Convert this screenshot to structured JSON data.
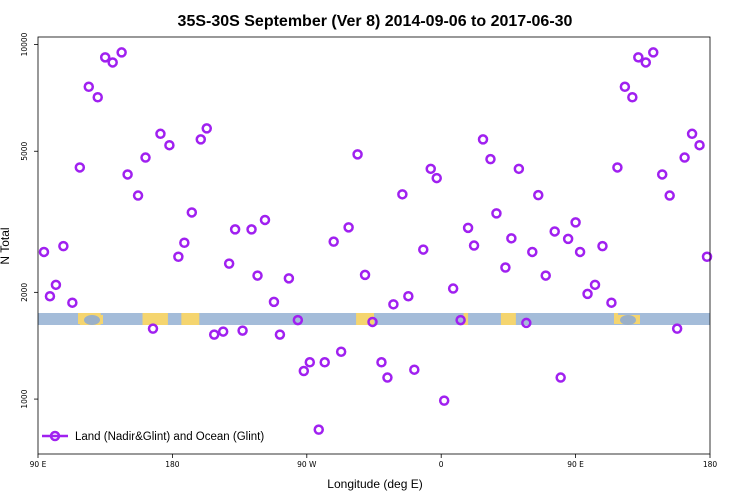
{
  "chart_data": {
    "type": "scatter",
    "title": "35S-30S September (Ver 8)   2014-09-06 to 2017-06-30",
    "xlabel": "Longitude (deg E)",
    "ylabel": "N Total",
    "x_ticks": [
      {
        "value": 90,
        "label": "90 E"
      },
      {
        "value": 180,
        "label": "180"
      },
      {
        "value": 270,
        "label": "90 W"
      },
      {
        "value": 360,
        "label": "0"
      },
      {
        "value": 450,
        "label": "90 E"
      },
      {
        "value": 540,
        "label": "180"
      }
    ],
    "xlim": [
      90,
      540
    ],
    "y_scale": "log",
    "ylim": [
      700,
      10500
    ],
    "y_ticks": [
      {
        "value": 1000,
        "label": "1000"
      },
      {
        "value": 2000,
        "label": "2000"
      },
      {
        "value": 5000,
        "label": "5000"
      },
      {
        "value": 10000,
        "label": "10000"
      }
    ],
    "grid": false,
    "legend_position": "bottom-left",
    "marker_color": "#a020f0",
    "band_colors": {
      "ocean": "#a4bcd9",
      "land": "#f5d56f",
      "land_alt": "#9ab0c8"
    },
    "series": [
      {
        "name": "Land (Nadir&Glint) and Ocean (Glint)",
        "x": [
          94,
          98,
          102,
          107,
          113,
          118,
          124,
          130,
          135,
          140,
          146,
          150,
          157,
          162,
          167,
          172,
          178,
          184,
          188,
          193,
          199,
          203,
          208,
          214,
          218,
          222,
          227,
          233,
          237,
          242,
          248,
          252,
          258,
          264,
          268,
          272,
          278,
          282,
          288,
          293,
          298,
          304,
          309,
          314,
          320,
          324,
          328,
          334,
          338,
          342,
          348,
          353,
          357,
          362,
          368,
          373,
          378,
          382,
          388,
          393,
          397,
          403,
          407,
          412,
          417,
          421,
          425,
          430,
          436,
          440,
          445,
          450,
          453,
          458,
          463,
          468,
          474,
          478,
          483,
          488,
          492,
          497,
          502,
          508,
          513,
          518,
          523,
          528,
          533,
          538
        ],
        "y": [
          2600,
          1950,
          2100,
          2700,
          1870,
          4500,
          7600,
          7100,
          9200,
          8900,
          9500,
          4300,
          3750,
          4800,
          1580,
          5600,
          5200,
          2520,
          2760,
          3360,
          5400,
          5800,
          1520,
          1550,
          2410,
          3010,
          1560,
          3010,
          2230,
          3200,
          1880,
          1520,
          2190,
          1670,
          1200,
          1270,
          820,
          1270,
          2780,
          1360,
          3050,
          4900,
          2240,
          1650,
          1270,
          1150,
          1850,
          3780,
          1950,
          1210,
          2640,
          4460,
          4200,
          990,
          2050,
          1670,
          3040,
          2710,
          5400,
          4750,
          3340,
          2350,
          2840,
          4460,
          1640,
          2600,
          3760,
          2230,
          2970,
          1150,
          2830,
          3150,
          2600,
          1980,
          2100,
          2700,
          1870,
          4500,
          7600,
          7100,
          9200,
          8900,
          9500,
          4300,
          3750,
          1580,
          4800,
          5600,
          5200,
          2520
        ]
      }
    ]
  }
}
